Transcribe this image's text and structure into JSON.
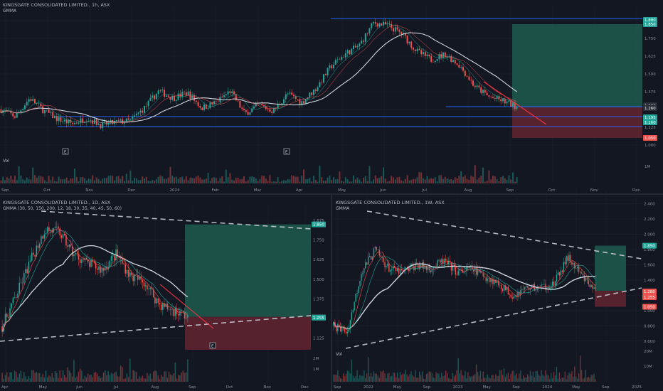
{
  "top_panel": {
    "title": "KINGSGATE CONSOLIDATED LIMITED., 1h, ASX",
    "indicator": "GMMA",
    "vol_label": "Vol",
    "vol_scale": "1M",
    "markers": [
      "E",
      "E"
    ]
  },
  "bottom_left_panel": {
    "title": "KINGSGATE CONSOLIDATED LIMITED., 1D, ASX",
    "indicator": "GMMA (30, 50, 150, 200, 12, 18, 30, 35, 40, 45, 50, 60)",
    "vol_scale_top": "2M",
    "vol_scale_bottom": "1M",
    "markers": [
      "E"
    ]
  },
  "bottom_right_panel": {
    "title": "KINGSGATE CONSOLIDATED LIMITED., 1W, ASX",
    "indicator": "GMMA",
    "vol_label": "Vol",
    "vol_scale_top": "20M",
    "vol_scale_bottom": "10M"
  },
  "colors": {
    "background": "#131722",
    "up": "#26a69a",
    "down": "#ef5350",
    "blue_line": "#2962ff",
    "target_zone": "#1f5c4f",
    "stop_zone": "#5e2430",
    "trend_line": "#f23645",
    "dashed": "#d1d4dc"
  },
  "chart_data": [
    {
      "type": "line",
      "timeframe": "1h",
      "x_tick_labels": [
        "Sep",
        "Oct",
        "Nov",
        "Dec",
        "2024",
        "Feb",
        "Mar",
        "Apr",
        "May",
        "Jun",
        "Jul",
        "Aug",
        "Sep",
        "Oct",
        "Nov",
        "Dec"
      ],
      "y_tick_labels": [
        "1.875",
        "1.750",
        "1.625",
        "1.500",
        "1.375",
        "1.250",
        "1.125",
        "1.000"
      ],
      "ylim": [
        0.98,
        1.92
      ],
      "series": [
        {
          "name": "",
          "x": [
            0,
            20,
            40,
            60,
            80,
            100,
            120,
            140,
            160,
            180,
            200,
            220,
            240,
            260,
            280,
            300,
            320,
            340,
            360,
            380,
            400,
            420,
            440,
            460,
            480,
            500,
            520,
            540,
            560,
            580,
            600,
            620,
            640,
            660,
            680,
            700,
            720
          ],
          "values": [
            1.25,
            1.2,
            1.33,
            1.24,
            1.18,
            1.15,
            1.19,
            1.14,
            1.16,
            1.17,
            1.26,
            1.38,
            1.33,
            1.37,
            1.26,
            1.3,
            1.38,
            1.22,
            1.28,
            1.24,
            1.36,
            1.3,
            1.4,
            1.55,
            1.64,
            1.7,
            1.86,
            1.84,
            1.78,
            1.66,
            1.6,
            1.64,
            1.56,
            1.42,
            1.34,
            1.31,
            1.27
          ]
        }
      ],
      "horizontal_levels": [
        1.89,
        1.27,
        1.2,
        1.13
      ],
      "target_zone": [
        1.265,
        1.85
      ],
      "stop_zone": [
        1.05,
        1.265
      ],
      "price_labels": [
        "1.880",
        "1.850",
        "1.280",
        "1.265",
        "1.260",
        "1.195",
        "1.160",
        "1.050"
      ],
      "axes": {
        "x": "",
        "y": ""
      }
    },
    {
      "type": "line",
      "timeframe": "1D",
      "x_tick_labels": [
        "Apr",
        "May",
        "Jun",
        "Jul",
        "Aug",
        "Sep",
        "Oct",
        "Nov",
        "Dec"
      ],
      "y_tick_labels": [
        "1.875",
        "1.750",
        "1.625",
        "1.500",
        "1.375",
        "1.250",
        "1.125"
      ],
      "ylim": [
        1.05,
        1.93
      ],
      "series": [
        {
          "name": "",
          "x": [
            0,
            20,
            40,
            60,
            80,
            100,
            120,
            140,
            160,
            180,
            200,
            220,
            240,
            260
          ],
          "values": [
            1.2,
            1.4,
            1.62,
            1.82,
            1.8,
            1.66,
            1.6,
            1.56,
            1.66,
            1.52,
            1.48,
            1.34,
            1.3,
            1.26
          ]
        }
      ],
      "target_zone": [
        1.26,
        1.85
      ],
      "stop_zone": [
        1.05,
        1.26
      ],
      "price_labels": [
        "1.850",
        "1.260",
        "1.255"
      ],
      "axes": {
        "x": "",
        "y": ""
      }
    },
    {
      "type": "line",
      "timeframe": "1W",
      "x_tick_labels": [
        "Sep",
        "2022",
        "May",
        "Sep",
        "2023",
        "May",
        "Sep",
        "2024",
        "May",
        "Sep",
        "2025"
      ],
      "y_tick_labels": [
        "2.400",
        "2.200",
        "2.000",
        "1.800",
        "1.600",
        "1.400",
        "1.200",
        "1.000",
        "0.800",
        "0.600"
      ],
      "ylim": [
        0.58,
        2.48
      ],
      "series": [
        {
          "name": "",
          "x": [
            0,
            20,
            40,
            60,
            80,
            100,
            120,
            140,
            160,
            180,
            200,
            220,
            240,
            260,
            280,
            300,
            320,
            340,
            360,
            380
          ],
          "values": [
            0.8,
            0.72,
            1.5,
            1.8,
            1.55,
            1.5,
            1.6,
            1.55,
            1.65,
            1.5,
            1.55,
            1.45,
            1.35,
            1.2,
            1.3,
            1.3,
            1.35,
            1.7,
            1.45,
            1.26
          ]
        }
      ],
      "target_zone": [
        1.26,
        1.85
      ],
      "stop_zone": [
        1.05,
        1.26
      ],
      "price_labels": [
        "1.850",
        "1.280",
        "1.255",
        "1.050"
      ],
      "axes": {
        "x": "",
        "y": ""
      }
    }
  ]
}
